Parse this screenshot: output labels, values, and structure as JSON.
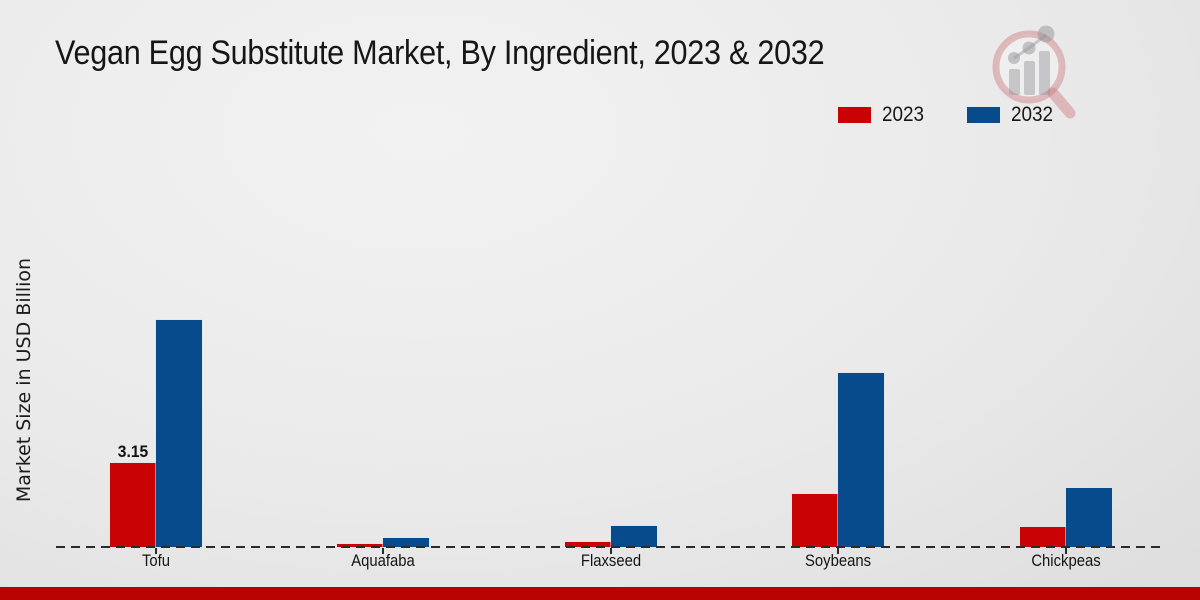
{
  "page": {
    "title": "Vegan Egg Substitute Market, By Ingredient, 2023 & 2032",
    "ylabel": "Market Size in USD Billion"
  },
  "legend": [
    {
      "label": "2023",
      "color": "#c90303"
    },
    {
      "label": "2032",
      "color": "#084b8c"
    }
  ],
  "footer": {
    "band_color": "#b90202"
  },
  "logo": {
    "name": "market-research-future-watermark"
  },
  "chart_data": {
    "type": "bar",
    "title": "Vegan Egg Substitute Market, By Ingredient, 2023 & 2032",
    "xlabel": "",
    "ylabel": "Market Size in USD Billion",
    "categories": [
      "Tofu",
      "Aquafaba",
      "Flaxseed",
      "Soybeans",
      "Chickpeas"
    ],
    "series": [
      {
        "name": "2023",
        "color": "#c90303",
        "values": [
          3.15,
          0.1,
          0.2,
          2.0,
          0.75
        ]
      },
      {
        "name": "2032",
        "color": "#084b8c",
        "values": [
          8.5,
          0.35,
          0.8,
          6.5,
          2.2
        ]
      }
    ],
    "annotations": [
      {
        "category": "Tofu",
        "series": "2023",
        "text": "3.15"
      }
    ],
    "ylim": [
      0,
      9
    ],
    "grid": false,
    "legend_position": "top-right",
    "baseline_style": "dashed"
  }
}
